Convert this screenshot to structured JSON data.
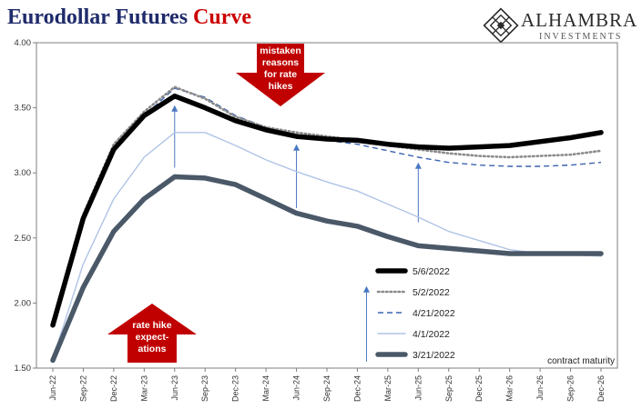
{
  "title": {
    "main": "Eurodollar Futures ",
    "accent": "Curve",
    "accent_color": "#cc0000",
    "main_color": "#1f2b6b"
  },
  "logo": {
    "name": "ALHAMBRA",
    "sub": "INVESTMENTS",
    "icon": "diamond-lattice-icon"
  },
  "annotations": {
    "top_arrow": [
      "mistaken",
      "reasons",
      "for rate",
      "hikes"
    ],
    "bottom_arrow": [
      "rate hike",
      "expect-",
      "ations"
    ],
    "arrow_color": "#c00000",
    "axis_note": "contract maturity"
  },
  "chart_data": {
    "type": "line",
    "categories": [
      "Jun-22",
      "Sep-22",
      "Dec-22",
      "Mar-23",
      "Jun-23",
      "Sep-23",
      "Dec-23",
      "Mar-24",
      "Jun-24",
      "Sep-24",
      "Dec-24",
      "Mar-25",
      "Jun-25",
      "Sep-25",
      "Dec-25",
      "Mar-26",
      "Jun-26",
      "Sep-26",
      "Dec-26"
    ],
    "ylim": [
      1.5,
      4.0
    ],
    "yticks": [
      "1.50",
      "2.00",
      "2.50",
      "3.00",
      "3.50",
      "4.00"
    ],
    "ytick_values": [
      1.5,
      2.0,
      2.5,
      3.0,
      3.5,
      4.0
    ],
    "legend_position": "bottom-right",
    "series": [
      {
        "name": "5/6/2022",
        "color": "#000000",
        "style": "solid",
        "width": "thick",
        "values": [
          1.83,
          2.65,
          3.18,
          3.44,
          3.59,
          3.5,
          3.4,
          3.33,
          3.28,
          3.26,
          3.25,
          3.22,
          3.2,
          3.19,
          3.2,
          3.21,
          3.24,
          3.27,
          3.31
        ]
      },
      {
        "name": "5/2/2022",
        "color": "#8a8a8a",
        "style": "dotted",
        "width": "medium",
        "values": [
          1.84,
          2.68,
          3.22,
          3.47,
          3.66,
          3.57,
          3.43,
          3.35,
          3.31,
          3.28,
          3.25,
          3.21,
          3.18,
          3.15,
          3.13,
          3.12,
          3.13,
          3.14,
          3.17
        ]
      },
      {
        "name": "4/21/2022",
        "color": "#3a63b0",
        "style": "dashed",
        "width": "thin",
        "values": [
          1.82,
          2.62,
          3.17,
          3.44,
          3.65,
          3.58,
          3.44,
          3.35,
          3.28,
          3.25,
          3.22,
          3.17,
          3.12,
          3.08,
          3.06,
          3.05,
          3.05,
          3.06,
          3.08
        ]
      },
      {
        "name": "4/1/2022",
        "color": "#b0c4e6",
        "style": "solid",
        "width": "thin",
        "values": [
          1.57,
          2.3,
          2.8,
          3.12,
          3.31,
          3.31,
          3.21,
          3.1,
          3.01,
          2.93,
          2.86,
          2.76,
          2.66,
          2.55,
          2.48,
          2.41,
          2.38,
          2.37,
          2.36
        ]
      },
      {
        "name": "3/21/2022",
        "color": "#4a5868",
        "style": "solid",
        "width": "thick",
        "values": [
          1.56,
          2.12,
          2.55,
          2.8,
          2.97,
          2.96,
          2.91,
          2.8,
          2.69,
          2.63,
          2.59,
          2.51,
          2.44,
          2.42,
          2.4,
          2.38,
          2.38,
          2.38,
          2.38
        ]
      }
    ],
    "small_arrows": [
      {
        "category_index": 4,
        "from": 3.04,
        "to": 3.52
      },
      {
        "category_index": 8,
        "from": 2.73,
        "to": 3.22
      },
      {
        "category_index": 12,
        "from": 2.62,
        "to": 3.08
      },
      {
        "category_index": 10.3,
        "from": 1.55,
        "to": 2.13
      }
    ]
  }
}
